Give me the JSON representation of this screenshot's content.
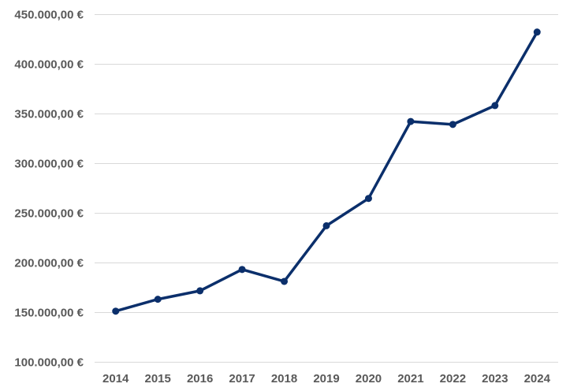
{
  "chart_data": {
    "type": "line",
    "title": "",
    "xlabel": "",
    "ylabel": "",
    "categories": [
      "2014",
      "2015",
      "2016",
      "2017",
      "2018",
      "2019",
      "2020",
      "2021",
      "2022",
      "2023",
      "2024"
    ],
    "series": [
      {
        "values": [
          151000,
          163000,
          171500,
          193000,
          181000,
          237000,
          264500,
          342000,
          339000,
          358000,
          432000
        ],
        "color": "#0b2f6b"
      }
    ],
    "ylim": [
      100000,
      450000
    ],
    "y_ticks": [
      450000,
      400000,
      350000,
      300000,
      250000,
      200000,
      150000,
      100000
    ],
    "y_tick_labels": [
      "450.000,00 €",
      "400.000,00 €",
      "350.000,00 €",
      "300.000,00 €",
      "250.000,00 €",
      "200.000,00 €",
      "150.000,00 €",
      "100.000,00 €"
    ],
    "grid": true,
    "legend": "none",
    "gridline_color": "#d9d9d9",
    "text_color": "#595959"
  }
}
